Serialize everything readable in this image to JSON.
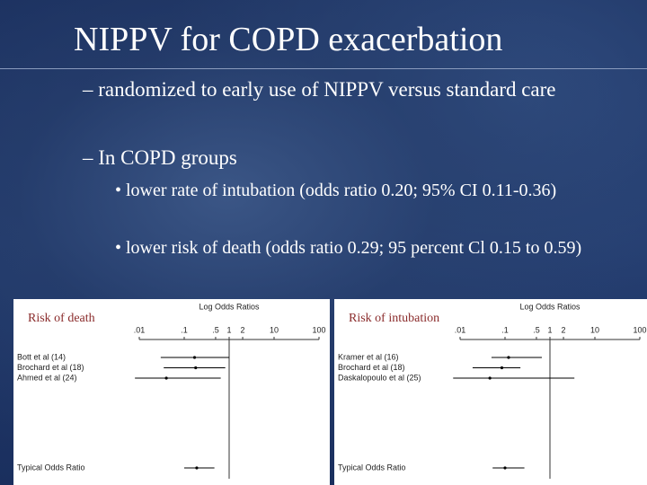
{
  "slide": {
    "title": "NIPPV for COPD exacerbation",
    "bullets": [
      "– randomized to early use of NIPPV versus standard care",
      "– In COPD groups"
    ],
    "sub_bullets": [
      "• lower rate of intubation (odds ratio 0.20; 95% CI 0.11-0.36)",
      "• lower risk of death (odds ratio 0.29; 95 percent Cl 0.15 to 0.59)"
    ]
  },
  "chart_data": [
    {
      "type": "forest",
      "label": "Risk of death",
      "title": "Log Odds Ratios",
      "log_x": true,
      "xlim": [
        0.01,
        100
      ],
      "xticks": [
        {
          "value": 0.01,
          "label": ".01"
        },
        {
          "value": 0.1,
          "label": ".1"
        },
        {
          "value": 0.5,
          "label": ".5"
        },
        1,
        2,
        10,
        100
      ],
      "reference": 1,
      "categories": [
        "Bott et al (14)",
        "Brochard et al (18)",
        "Ahmed et al (24)",
        "Typical Odds Ratio"
      ],
      "values": [
        0.17,
        0.18,
        0.04,
        0.19
      ],
      "lower": [
        0.03,
        0.035,
        0.008,
        0.1
      ],
      "upper": [
        1.0,
        0.82,
        0.65,
        0.47
      ],
      "color": "#000000"
    },
    {
      "type": "forest",
      "label": "Risk of intubation",
      "title": "Log Odds Ratios",
      "log_x": true,
      "xlim": [
        0.01,
        100
      ],
      "xticks": [
        {
          "value": 0.01,
          "label": ".01"
        },
        {
          "value": 0.1,
          "label": ".1"
        },
        {
          "value": 0.5,
          "label": ".5"
        },
        1,
        2,
        10,
        100
      ],
      "reference": 1,
      "categories": [
        "Kramer et al (16)",
        "Brochard et al (18)",
        "Daskalopoulo et al (25)",
        "Typical Odds Ratio"
      ],
      "values": [
        0.12,
        0.085,
        0.046,
        0.1
      ],
      "lower": [
        0.05,
        0.019,
        0.007,
        0.053
      ],
      "upper": [
        0.66,
        0.22,
        3.5,
        0.27
      ],
      "color": "#000000"
    }
  ]
}
